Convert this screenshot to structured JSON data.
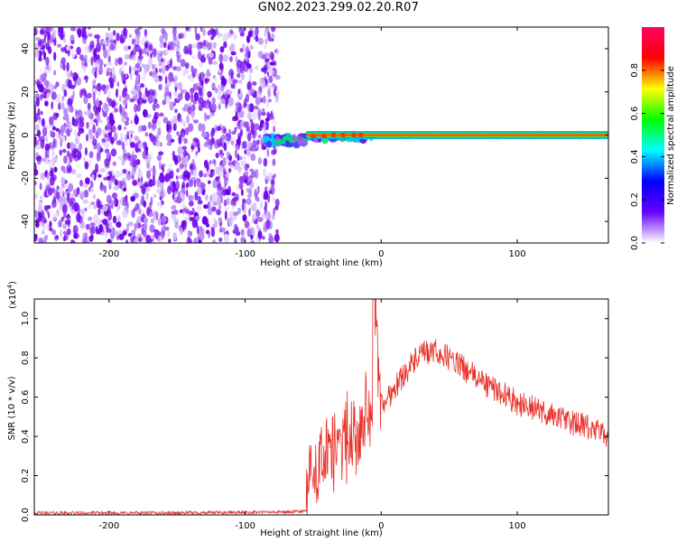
{
  "title": "GN02.2023.299.02.20.R07",
  "chart_data": [
    {
      "type": "heatmap",
      "xlabel": "Height of straight line (km)",
      "ylabel": "Frequency (Hz)",
      "xlim": [
        -255,
        167
      ],
      "ylim": [
        -50,
        50
      ],
      "xticks": [
        -200,
        -100,
        0,
        100
      ],
      "yticks": [
        -40,
        -20,
        0,
        20,
        40
      ],
      "noise_region_x": [
        -255,
        -78
      ],
      "tone_frequency_hz": 0,
      "colorbar": {
        "label": "Normalized spectral amplitude",
        "range": [
          0.0,
          1.0
        ],
        "ticks": [
          0.0,
          0.2,
          0.4,
          0.6,
          0.8
        ],
        "colors": [
          "#ffffff",
          "#6600ff",
          "#0000ff",
          "#00ffff",
          "#00ff00",
          "#ffff00",
          "#ff0000",
          "#ff0066"
        ]
      }
    },
    {
      "type": "line",
      "xlabel": "Height of straight line (km)",
      "ylabel": "SNR (10 * v/v)",
      "scale_label": "(x10",
      "scale_exp": "4",
      "xlim": [
        -255,
        167
      ],
      "ylim": [
        0,
        1.1
      ],
      "xticks": [
        -200,
        -100,
        0,
        100
      ],
      "yticks": [
        0.0,
        0.2,
        0.4,
        0.6,
        0.8,
        1.0
      ],
      "series": [
        {
          "color": "#e8322b",
          "x": [
            -255,
            -150,
            -65,
            -55,
            -52,
            -50,
            -45,
            -40,
            -30,
            -20,
            -10,
            -6,
            -5,
            0,
            10,
            20,
            30,
            40,
            50,
            60,
            70,
            80,
            90,
            100,
            110,
            120,
            130,
            140,
            150,
            160,
            167
          ],
          "y": [
            0.01,
            0.01,
            0.015,
            0.02,
            0.3,
            0.15,
            0.25,
            0.3,
            0.35,
            0.45,
            0.5,
            0.55,
            1.15,
            0.55,
            0.65,
            0.75,
            0.82,
            0.83,
            0.8,
            0.75,
            0.7,
            0.65,
            0.62,
            0.57,
            0.55,
            0.52,
            0.5,
            0.47,
            0.45,
            0.42,
            0.4
          ]
        }
      ]
    }
  ]
}
